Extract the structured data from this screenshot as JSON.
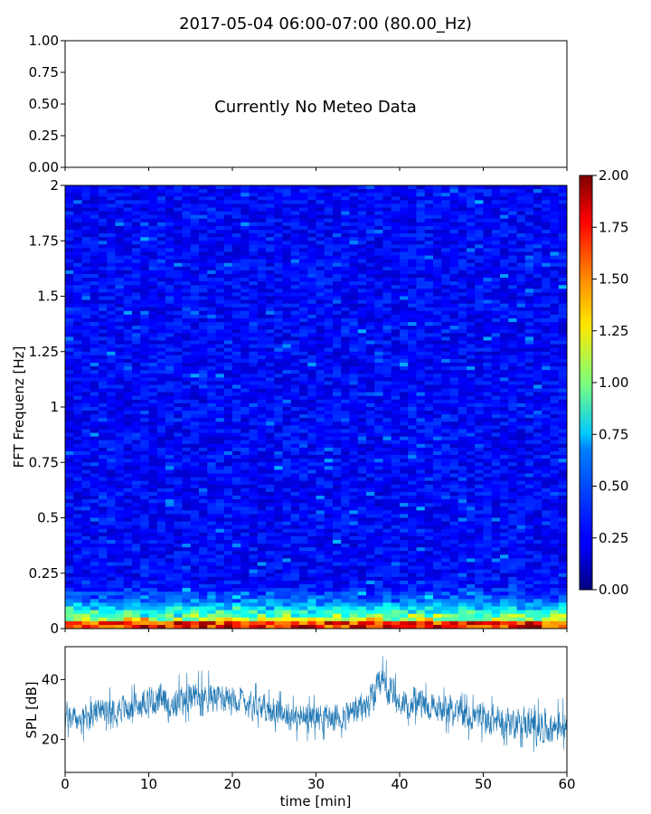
{
  "title": "2017-05-04 06:00-07:00 (80.00_Hz)",
  "chart_data": [
    {
      "type": "line",
      "panel": "meteo",
      "annotation": "Currently No Meteo Data",
      "ylim": [
        0,
        1
      ],
      "yticks": [
        "0.00",
        "0.25",
        "0.50",
        "0.75",
        "1.00"
      ],
      "xlim": [
        0,
        60
      ],
      "x_tick_labels_shown": false,
      "series": []
    },
    {
      "type": "heatmap",
      "panel": "spectrogram",
      "ylabel": "FFT Frequenz [Hz]",
      "xlim": [
        0,
        60
      ],
      "ylim": [
        0,
        2
      ],
      "yticks": [
        "0",
        "0.25",
        "0.5",
        "0.75",
        "1",
        "1.25",
        "1.5",
        "1.75",
        "2"
      ],
      "x_tick_labels_shown": false,
      "colormap": "jet",
      "colorbar": {
        "range": [
          0,
          2
        ],
        "ticks": [
          "0.00",
          "0.25",
          "0.50",
          "0.75",
          "1.00",
          "1.25",
          "1.50",
          "1.75",
          "2.00"
        ]
      },
      "description_values": {
        "background_level": 0.25,
        "low_freq_band_hz": [
          0,
          0.25
        ],
        "low_freq_level": 1.6
      }
    },
    {
      "type": "line",
      "panel": "spl",
      "ylabel": "SPL [dB]",
      "xlabel": "time [min]",
      "xlim": [
        0,
        60
      ],
      "ylim": [
        9,
        51
      ],
      "yticks": [
        "20",
        "40"
      ],
      "xticks": [
        "0",
        "10",
        "20",
        "30",
        "40",
        "50",
        "60"
      ],
      "color": "#1f77b4",
      "series_envelope": {
        "x": [
          0,
          2,
          4,
          6,
          8,
          10,
          12,
          14,
          16,
          18,
          20,
          22,
          24,
          26,
          28,
          30,
          32,
          34,
          36,
          38,
          40,
          42,
          44,
          46,
          48,
          50,
          52,
          54,
          56,
          58,
          60
        ],
        "mean": [
          28,
          26,
          29,
          31,
          30,
          34,
          32,
          33,
          35,
          34,
          35,
          32,
          30,
          29,
          27,
          28,
          27,
          29,
          31,
          38,
          32,
          33,
          30,
          30,
          28,
          27,
          26,
          26,
          25,
          24,
          26
        ],
        "low": [
          21,
          19,
          22,
          24,
          24,
          27,
          24,
          25,
          28,
          27,
          28,
          25,
          23,
          22,
          19,
          20,
          20,
          21,
          23,
          28,
          24,
          25,
          23,
          22,
          20,
          19,
          18,
          18,
          16,
          15,
          17
        ],
        "high": [
          36,
          33,
          36,
          38,
          38,
          43,
          41,
          42,
          43,
          43,
          44,
          40,
          37,
          36,
          34,
          35,
          34,
          37,
          39,
          48,
          40,
          40,
          38,
          37,
          35,
          35,
          34,
          34,
          34,
          33,
          34
        ]
      }
    }
  ]
}
